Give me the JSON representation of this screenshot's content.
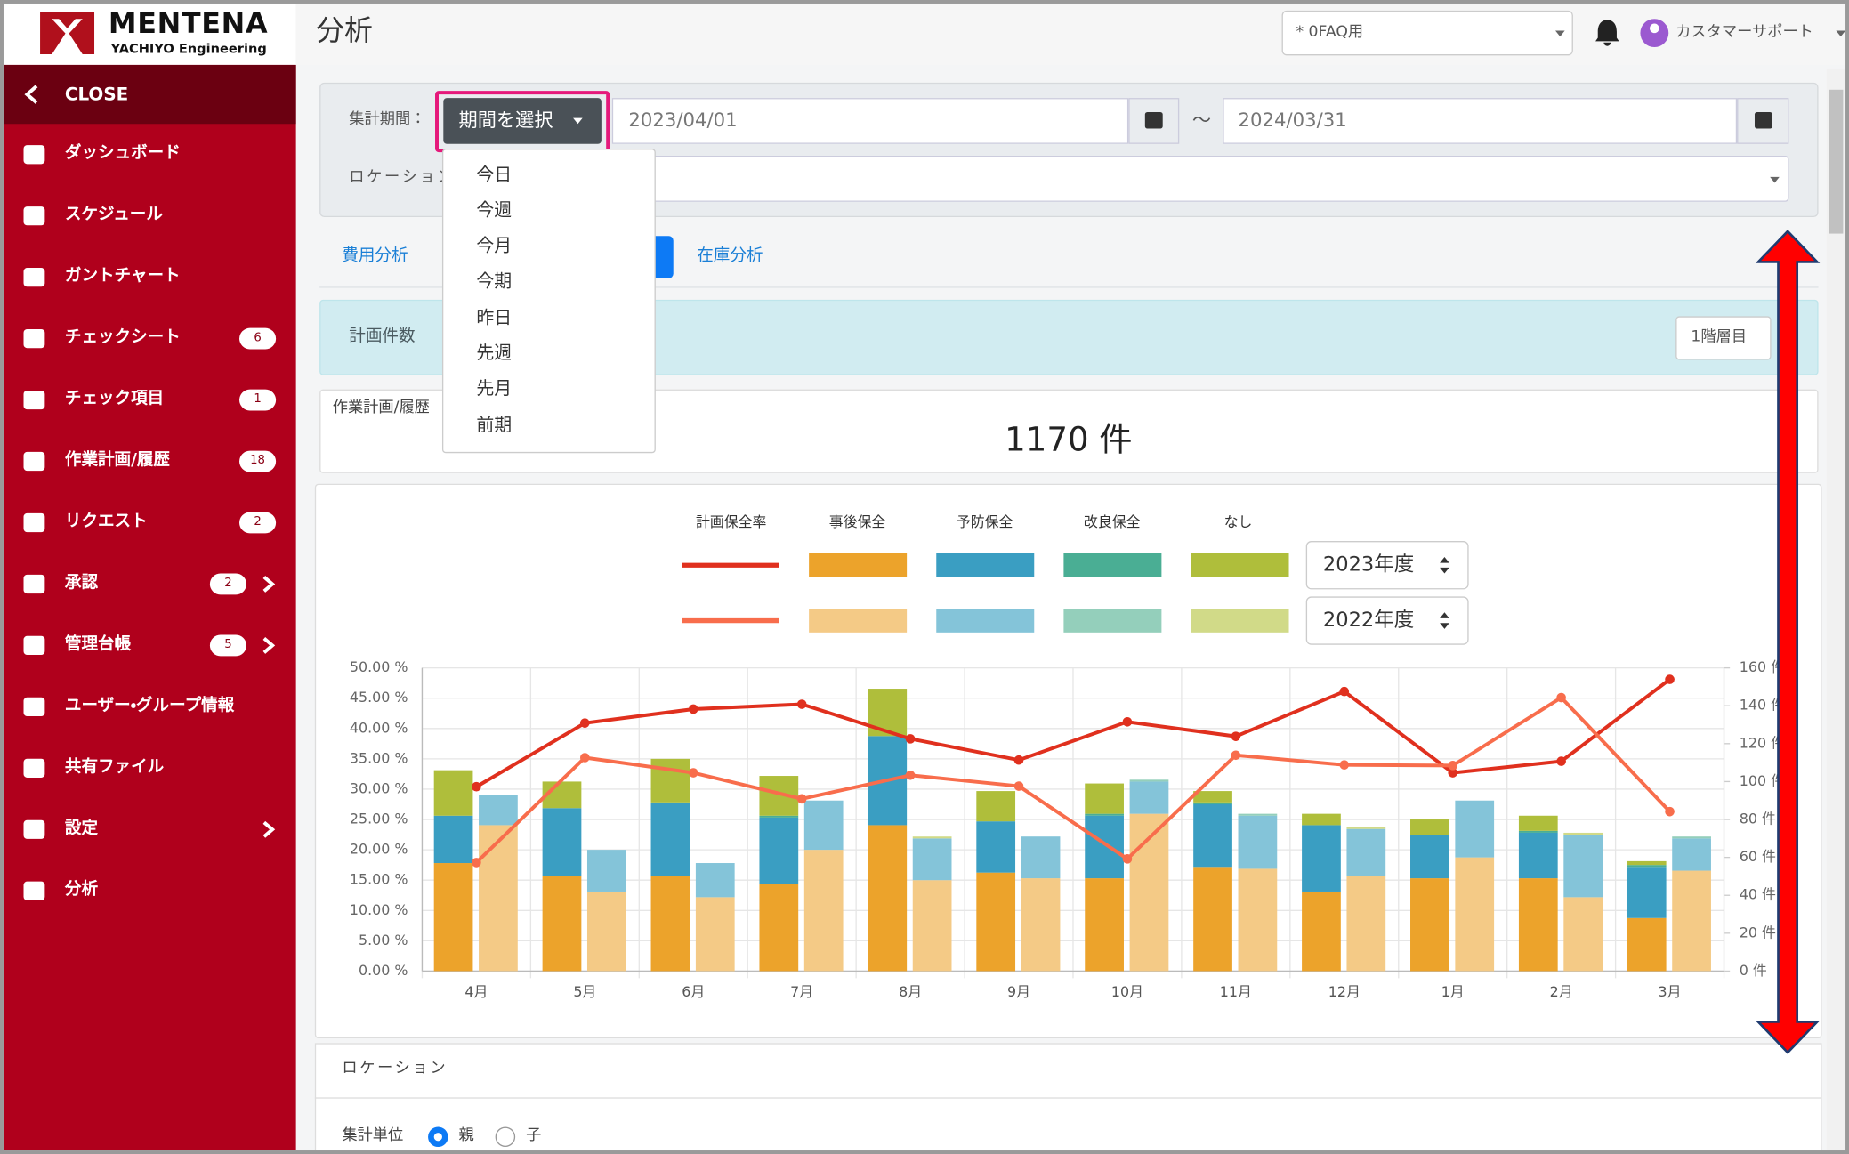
{
  "sidebar": {
    "logo_title": "MENTENA",
    "logo_subtitle": "YACHIYO Engineering",
    "close": "CLOSE",
    "menu": [
      {
        "label": "ダッシュボード"
      },
      {
        "label": "スケジュール"
      },
      {
        "label": "ガントチャート"
      },
      {
        "label": "チェックシート",
        "badge": 6
      },
      {
        "label": "チェック項目",
        "badge": 1
      },
      {
        "label": "作業計画/履歴",
        "badge": 18
      },
      {
        "label": "リクエスト",
        "badge": 2
      },
      {
        "label": "承認",
        "badge": 2,
        "submenu": true
      },
      {
        "label": "管理台帳",
        "badge": 5,
        "submenu": true
      },
      {
        "label": "ユーザー・グループ情報"
      },
      {
        "label": "共有ファイル"
      },
      {
        "label": "設定",
        "submenu": true
      },
      {
        "label": "分析"
      }
    ]
  },
  "header": {
    "title": "分析",
    "site_select": "* 0FAQ用",
    "user": "カスタマーサポート"
  },
  "filter": {
    "period_label": "集計期間：",
    "period_button": "期間を選択",
    "start_date": "2023/04/01",
    "separator": "～",
    "end_date": "2024/03/31",
    "location_label": "ロケーション",
    "period_options": [
      "今日",
      "今週",
      "今月",
      "今期",
      "昨日",
      "先週",
      "先月",
      "前期"
    ]
  },
  "tabs": [
    "費用分析",
    "在庫分析"
  ],
  "summary": {
    "label": "計画件数",
    "level_button": "1階層目",
    "card_title": "作業計画/履歴",
    "total": "1170 件"
  },
  "chart_data": {
    "type": "bar-line",
    "categories": [
      "4月",
      "5月",
      "6月",
      "7月",
      "8月",
      "9月",
      "10月",
      "11月",
      "12月",
      "1月",
      "2月",
      "3月"
    ],
    "legend_headers": [
      "計画保全率",
      "事後保全",
      "予防保全",
      "改良保全",
      "なし"
    ],
    "datasets": [
      {
        "label": "2023年度",
        "line": {
          "color": "#e0301e",
          "values": [
            30.4,
            40.9,
            43.2,
            44.0,
            38.3,
            34.8,
            41.1,
            38.7,
            46.1,
            32.7,
            34.6,
            48.1
          ]
        },
        "bars": [
          {
            "color": "#eca32b",
            "axis": "y2",
            "values": [
              57,
              50,
              50,
              46,
              77,
              52,
              49,
              55,
              42,
              49,
              49,
              28
            ]
          },
          {
            "color": "#3a9ec2",
            "axis": "y2",
            "values": [
              25,
              36,
              39,
              35,
              47,
              27,
              33,
              33,
              35,
              23,
              24,
              27
            ]
          },
          {
            "color": "#4aae94",
            "axis": "y2",
            "values": [
              0,
              0,
              0,
              1,
              0,
              0,
              1,
              1,
              0,
              0,
              1,
              1
            ]
          },
          {
            "color": "#afbe3b",
            "axis": "y2",
            "values": [
              24,
              14,
              23,
              21,
              25,
              16,
              16,
              6,
              6,
              8,
              8,
              2
            ]
          }
        ]
      },
      {
        "label": "2022年度",
        "line": {
          "color": "#f86d4c",
          "values": [
            17.9,
            35.2,
            32.7,
            28.4,
            32.3,
            30.5,
            18.5,
            35.6,
            34.0,
            33.9,
            45.1,
            26.3
          ]
        },
        "bars": [
          {
            "color": "#f4ca86",
            "axis": "y2",
            "values": [
              77,
              42,
              39,
              64,
              48,
              49,
              83,
              54,
              50,
              60,
              39,
              53
            ]
          },
          {
            "color": "#84c4d9",
            "axis": "y2",
            "values": [
              16,
              22,
              18,
              26,
              22,
              22,
              17,
              28,
              25,
              30,
              33,
              17
            ]
          },
          {
            "color": "#94cfbb",
            "axis": "y2",
            "values": [
              0,
              0,
              0,
              0,
              0,
              0,
              1,
              1,
              0,
              0,
              0,
              1
            ]
          },
          {
            "color": "#d1da88",
            "axis": "y2",
            "values": [
              0,
              0,
              0,
              0,
              1,
              0,
              0,
              0,
              1,
              0,
              1,
              0
            ]
          }
        ]
      }
    ],
    "ylim": [
      0,
      50
    ],
    "yticks": [
      {
        "value": 0,
        "label": "0.00 %"
      },
      {
        "value": 5,
        "label": "5.00 %"
      },
      {
        "value": 10,
        "label": "10.00 %"
      },
      {
        "value": 15,
        "label": "15.00 %"
      },
      {
        "value": 20,
        "label": "20.00 %"
      },
      {
        "value": 25,
        "label": "25.00 %"
      },
      {
        "value": 30,
        "label": "30.00 %"
      },
      {
        "value": 35,
        "label": "35.00 %"
      },
      {
        "value": 40,
        "label": "40.00 %"
      },
      {
        "value": 45,
        "label": "45.00 %"
      },
      {
        "value": 50,
        "label": "50.00 %"
      }
    ],
    "y2lim": [
      0,
      160
    ],
    "y2ticks": [
      {
        "value": 0,
        "label": "0 件"
      },
      {
        "value": 20,
        "label": "20 件"
      },
      {
        "value": 40,
        "label": "40 件"
      },
      {
        "value": 60,
        "label": "60 件"
      },
      {
        "value": 80,
        "label": "80 件"
      },
      {
        "value": 100,
        "label": "100 件"
      },
      {
        "value": 120,
        "label": "120 件"
      },
      {
        "value": 140,
        "label": "140 件"
      },
      {
        "value": 160,
        "label": "160 件"
      }
    ],
    "grid": true
  },
  "location_section": {
    "title": "ロケーション",
    "unit_label": "集計単位",
    "options": [
      "親",
      "子"
    ]
  }
}
